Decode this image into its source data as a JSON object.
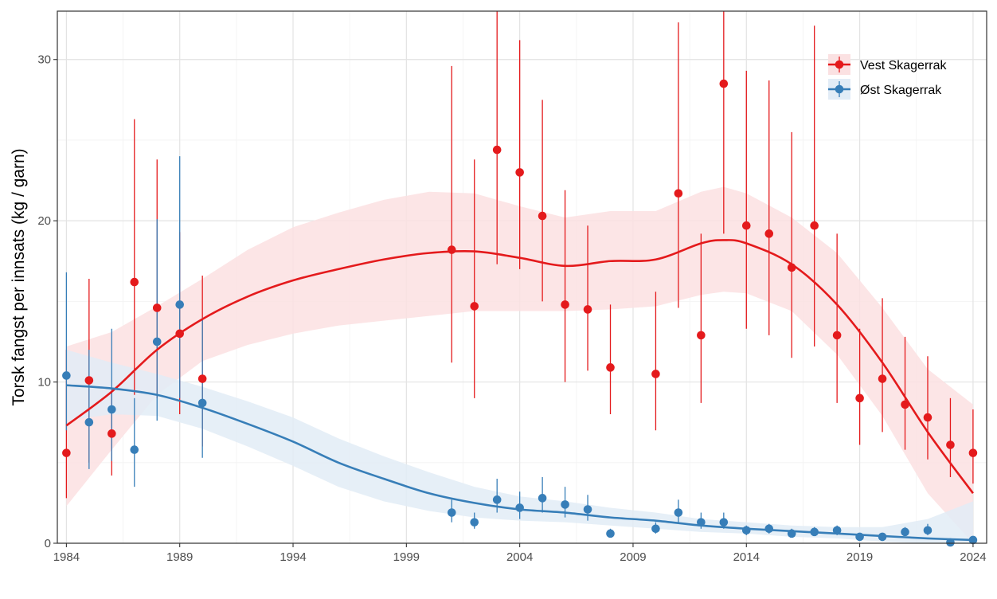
{
  "chart_data": {
    "type": "scatter",
    "title": "",
    "xlabel": "",
    "ylabel": "Torsk fangst per innsats (kg / garn)",
    "xlim": [
      1983.6,
      2024.6
    ],
    "ylim": [
      0,
      33
    ],
    "x_ticks": [
      "1984",
      "1989",
      "1994",
      "1999",
      "2004",
      "2009",
      "2014",
      "2019",
      "2024"
    ],
    "y_ticks": [
      "0",
      "10",
      "20",
      "30"
    ],
    "grid": true,
    "legend_position": "top-right",
    "series": [
      {
        "name": "Vest Skagerrak",
        "color": "#e41a1c",
        "ribbon_color": "#fbe1e2",
        "points": [
          {
            "x": 1984,
            "y": 5.6,
            "lo": 2.8,
            "hi": 12.0
          },
          {
            "x": 1985,
            "y": 10.1,
            "lo": 5.0,
            "hi": 16.4
          },
          {
            "x": 1986,
            "y": 6.8,
            "lo": 4.2,
            "hi": 9.5
          },
          {
            "x": 1987,
            "y": 16.2,
            "lo": 9.2,
            "hi": 26.3
          },
          {
            "x": 1988,
            "y": 14.6,
            "lo": 9.0,
            "hi": 23.8
          },
          {
            "x": 1989,
            "y": 13.0,
            "lo": 8.0,
            "hi": 19.3
          },
          {
            "x": 1990,
            "y": 10.2,
            "lo": 6.0,
            "hi": 16.6
          },
          {
            "x": 2001,
            "y": 18.2,
            "lo": 11.2,
            "hi": 29.6
          },
          {
            "x": 2002,
            "y": 14.7,
            "lo": 9.0,
            "hi": 23.8
          },
          {
            "x": 2003,
            "y": 24.4,
            "lo": 17.3,
            "hi": 33.0
          },
          {
            "x": 2004,
            "y": 23.0,
            "lo": 17.0,
            "hi": 31.2
          },
          {
            "x": 2005,
            "y": 20.3,
            "lo": 15.0,
            "hi": 27.5
          },
          {
            "x": 2006,
            "y": 14.8,
            "lo": 10.0,
            "hi": 21.9
          },
          {
            "x": 2007,
            "y": 14.5,
            "lo": 10.7,
            "hi": 19.7
          },
          {
            "x": 2008,
            "y": 10.9,
            "lo": 8.0,
            "hi": 14.8
          },
          {
            "x": 2010,
            "y": 10.5,
            "lo": 7.0,
            "hi": 15.6
          },
          {
            "x": 2011,
            "y": 21.7,
            "lo": 14.6,
            "hi": 32.3
          },
          {
            "x": 2012,
            "y": 12.9,
            "lo": 8.7,
            "hi": 19.2
          },
          {
            "x": 2013,
            "y": 28.5,
            "lo": 19.2,
            "hi": 33.0
          },
          {
            "x": 2014,
            "y": 19.7,
            "lo": 13.3,
            "hi": 29.3
          },
          {
            "x": 2015,
            "y": 19.2,
            "lo": 12.9,
            "hi": 28.7
          },
          {
            "x": 2016,
            "y": 17.1,
            "lo": 11.5,
            "hi": 25.5
          },
          {
            "x": 2017,
            "y": 19.7,
            "lo": 12.2,
            "hi": 32.1
          },
          {
            "x": 2018,
            "y": 12.9,
            "lo": 8.7,
            "hi": 19.2
          },
          {
            "x": 2019,
            "y": 9.0,
            "lo": 6.1,
            "hi": 13.3
          },
          {
            "x": 2020,
            "y": 10.2,
            "lo": 6.9,
            "hi": 15.2
          },
          {
            "x": 2021,
            "y": 8.6,
            "lo": 5.8,
            "hi": 12.8
          },
          {
            "x": 2022,
            "y": 7.8,
            "lo": 5.2,
            "hi": 11.6
          },
          {
            "x": 2023,
            "y": 6.1,
            "lo": 4.1,
            "hi": 9.0
          },
          {
            "x": 2024,
            "y": 5.6,
            "lo": 3.7,
            "hi": 8.3
          }
        ],
        "smooth": [
          {
            "x": 1984,
            "y": 7.3,
            "lo": 2.3,
            "hi": 12.2
          },
          {
            "x": 1986,
            "y": 9.4,
            "lo": 5.8,
            "hi": 13.1
          },
          {
            "x": 1988,
            "y": 12.0,
            "lo": 9.2,
            "hi": 14.7
          },
          {
            "x": 1990,
            "y": 13.9,
            "lo": 11.3,
            "hi": 16.4
          },
          {
            "x": 1992,
            "y": 15.3,
            "lo": 12.3,
            "hi": 18.2
          },
          {
            "x": 1994,
            "y": 16.3,
            "lo": 13.0,
            "hi": 19.6
          },
          {
            "x": 1996,
            "y": 17.0,
            "lo": 13.5,
            "hi": 20.5
          },
          {
            "x": 1998,
            "y": 17.6,
            "lo": 13.8,
            "hi": 21.3
          },
          {
            "x": 2000,
            "y": 18.0,
            "lo": 14.1,
            "hi": 21.8
          },
          {
            "x": 2002,
            "y": 18.1,
            "lo": 14.4,
            "hi": 21.7
          },
          {
            "x": 2004,
            "y": 17.7,
            "lo": 14.4,
            "hi": 20.9
          },
          {
            "x": 2006,
            "y": 17.2,
            "lo": 14.4,
            "hi": 20.2
          },
          {
            "x": 2008,
            "y": 17.5,
            "lo": 14.5,
            "hi": 20.6
          },
          {
            "x": 2010,
            "y": 17.6,
            "lo": 14.7,
            "hi": 20.6
          },
          {
            "x": 2012,
            "y": 18.6,
            "lo": 15.4,
            "hi": 21.8
          },
          {
            "x": 2013,
            "y": 18.8,
            "lo": 15.6,
            "hi": 22.1
          },
          {
            "x": 2014,
            "y": 18.6,
            "lo": 15.5,
            "hi": 21.7
          },
          {
            "x": 2016,
            "y": 17.3,
            "lo": 14.4,
            "hi": 20.2
          },
          {
            "x": 2018,
            "y": 14.8,
            "lo": 11.7,
            "hi": 18.0
          },
          {
            "x": 2020,
            "y": 11.2,
            "lo": 7.9,
            "hi": 14.6
          },
          {
            "x": 2022,
            "y": 6.9,
            "lo": 3.1,
            "hi": 10.8
          },
          {
            "x": 2024,
            "y": 3.1,
            "lo": 0.0,
            "hi": 8.6
          }
        ]
      },
      {
        "name": "Øst Skagerrak",
        "color": "#377eb8",
        "ribbon_color": "#e2ecf6",
        "points": [
          {
            "x": 1984,
            "y": 10.4,
            "lo": 7.0,
            "hi": 16.8
          },
          {
            "x": 1985,
            "y": 7.5,
            "lo": 4.6,
            "hi": 12.0
          },
          {
            "x": 1986,
            "y": 8.3,
            "lo": 5.1,
            "hi": 13.3
          },
          {
            "x": 1987,
            "y": 5.8,
            "lo": 3.5,
            "hi": 9.0
          },
          {
            "x": 1988,
            "y": 12.5,
            "lo": 7.6,
            "hi": 20.1
          },
          {
            "x": 1989,
            "y": 14.8,
            "lo": 9.0,
            "hi": 24.0
          },
          {
            "x": 1990,
            "y": 8.7,
            "lo": 5.3,
            "hi": 14.0
          },
          {
            "x": 2001,
            "y": 1.9,
            "lo": 1.3,
            "hi": 2.7
          },
          {
            "x": 2002,
            "y": 1.3,
            "lo": 0.9,
            "hi": 1.9
          },
          {
            "x": 2003,
            "y": 2.7,
            "lo": 1.9,
            "hi": 4.0
          },
          {
            "x": 2004,
            "y": 2.2,
            "lo": 1.5,
            "hi": 3.2
          },
          {
            "x": 2005,
            "y": 2.8,
            "lo": 1.9,
            "hi": 4.1
          },
          {
            "x": 2006,
            "y": 2.4,
            "lo": 1.6,
            "hi": 3.5
          },
          {
            "x": 2007,
            "y": 2.1,
            "lo": 1.4,
            "hi": 3.0
          },
          {
            "x": 2008,
            "y": 0.6,
            "lo": 0.4,
            "hi": 0.9
          },
          {
            "x": 2010,
            "y": 0.9,
            "lo": 0.6,
            "hi": 1.3
          },
          {
            "x": 2011,
            "y": 1.9,
            "lo": 1.3,
            "hi": 2.7
          },
          {
            "x": 2012,
            "y": 1.3,
            "lo": 0.9,
            "hi": 1.9
          },
          {
            "x": 2013,
            "y": 1.3,
            "lo": 0.9,
            "hi": 1.9
          },
          {
            "x": 2014,
            "y": 0.8,
            "lo": 0.5,
            "hi": 1.1
          },
          {
            "x": 2015,
            "y": 0.9,
            "lo": 0.6,
            "hi": 1.2
          },
          {
            "x": 2016,
            "y": 0.6,
            "lo": 0.4,
            "hi": 0.9
          },
          {
            "x": 2017,
            "y": 0.7,
            "lo": 0.5,
            "hi": 1.0
          },
          {
            "x": 2018,
            "y": 0.8,
            "lo": 0.5,
            "hi": 1.1
          },
          {
            "x": 2019,
            "y": 0.4,
            "lo": 0.3,
            "hi": 0.6
          },
          {
            "x": 2020,
            "y": 0.4,
            "lo": 0.3,
            "hi": 0.6
          },
          {
            "x": 2021,
            "y": 0.7,
            "lo": 0.5,
            "hi": 1.0
          },
          {
            "x": 2022,
            "y": 0.8,
            "lo": 0.5,
            "hi": 1.2
          },
          {
            "x": 2023,
            "y": 0.05,
            "lo": 0.0,
            "hi": 0.1
          },
          {
            "x": 2024,
            "y": 0.2,
            "lo": 0.1,
            "hi": 0.3
          }
        ],
        "smooth": [
          {
            "x": 1984,
            "y": 9.8,
            "lo": 7.6,
            "hi": 12.0
          },
          {
            "x": 1986,
            "y": 9.6,
            "lo": 8.0,
            "hi": 11.2
          },
          {
            "x": 1988,
            "y": 9.2,
            "lo": 7.9,
            "hi": 10.5
          },
          {
            "x": 1990,
            "y": 8.4,
            "lo": 7.1,
            "hi": 9.7
          },
          {
            "x": 1992,
            "y": 7.4,
            "lo": 6.0,
            "hi": 8.8
          },
          {
            "x": 1994,
            "y": 6.3,
            "lo": 4.8,
            "hi": 7.8
          },
          {
            "x": 1996,
            "y": 5.0,
            "lo": 3.5,
            "hi": 6.5
          },
          {
            "x": 1998,
            "y": 4.0,
            "lo": 2.6,
            "hi": 5.4
          },
          {
            "x": 2000,
            "y": 3.1,
            "lo": 2.0,
            "hi": 4.4
          },
          {
            "x": 2002,
            "y": 2.5,
            "lo": 1.6,
            "hi": 3.5
          },
          {
            "x": 2004,
            "y": 2.1,
            "lo": 1.4,
            "hi": 2.9
          },
          {
            "x": 2006,
            "y": 1.9,
            "lo": 1.3,
            "hi": 2.6
          },
          {
            "x": 2008,
            "y": 1.6,
            "lo": 1.1,
            "hi": 2.2
          },
          {
            "x": 2010,
            "y": 1.4,
            "lo": 0.9,
            "hi": 1.9
          },
          {
            "x": 2012,
            "y": 1.1,
            "lo": 0.7,
            "hi": 1.5
          },
          {
            "x": 2014,
            "y": 0.9,
            "lo": 0.6,
            "hi": 1.3
          },
          {
            "x": 2016,
            "y": 0.75,
            "lo": 0.4,
            "hi": 1.1
          },
          {
            "x": 2018,
            "y": 0.6,
            "lo": 0.3,
            "hi": 1.0
          },
          {
            "x": 2020,
            "y": 0.45,
            "lo": 0.1,
            "hi": 1.0
          },
          {
            "x": 2022,
            "y": 0.3,
            "lo": 0.0,
            "hi": 1.5
          },
          {
            "x": 2024,
            "y": 0.2,
            "lo": 0.0,
            "hi": 2.6
          }
        ]
      }
    ]
  }
}
